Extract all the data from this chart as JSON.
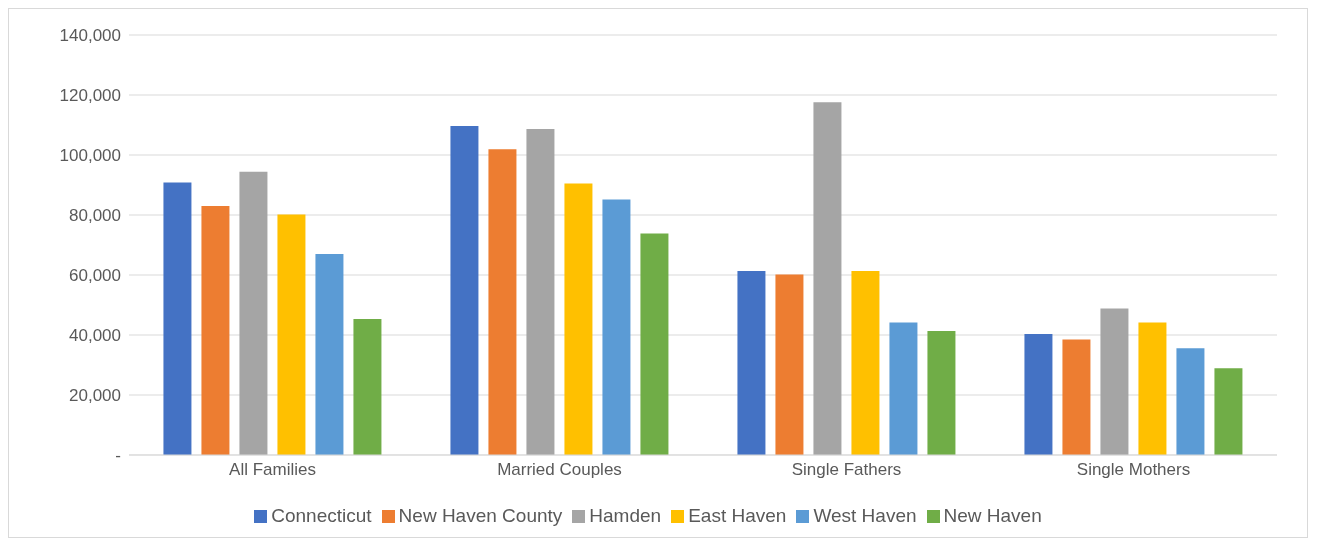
{
  "chart_data": {
    "type": "bar",
    "categories": [
      "All Families",
      "Married Couples",
      "Single Fathers",
      "Single Mothers"
    ],
    "series": [
      {
        "name": "Connecticut",
        "color": "#4472c4",
        "values": [
          90800,
          109700,
          61300,
          40300
        ]
      },
      {
        "name": "New Haven County",
        "color": "#ed7d31",
        "values": [
          83000,
          101900,
          60200,
          38500
        ]
      },
      {
        "name": "Hamden",
        "color": "#a5a5a5",
        "values": [
          94400,
          108700,
          117600,
          48800
        ]
      },
      {
        "name": "East Haven",
        "color": "#ffc000",
        "values": [
          80200,
          90500,
          61300,
          44200
        ]
      },
      {
        "name": "West Haven",
        "color": "#5b9bd5",
        "values": [
          67000,
          85200,
          44200,
          35600
        ]
      },
      {
        "name": "New Haven",
        "color": "#70ad47",
        "values": [
          45300,
          73800,
          41300,
          28900
        ]
      }
    ],
    "ylim": [
      0,
      140000
    ],
    "yticks": [
      {
        "value": 0,
        "label": "-"
      },
      {
        "value": 20000,
        "label": "20,000"
      },
      {
        "value": 40000,
        "label": "40,000"
      },
      {
        "value": 60000,
        "label": "60,000"
      },
      {
        "value": 80000,
        "label": "80,000"
      },
      {
        "value": 100000,
        "label": "100,000"
      },
      {
        "value": 120000,
        "label": "120,000"
      },
      {
        "value": 140000,
        "label": "140,000"
      }
    ],
    "grid": "y",
    "legend": "bottom"
  }
}
